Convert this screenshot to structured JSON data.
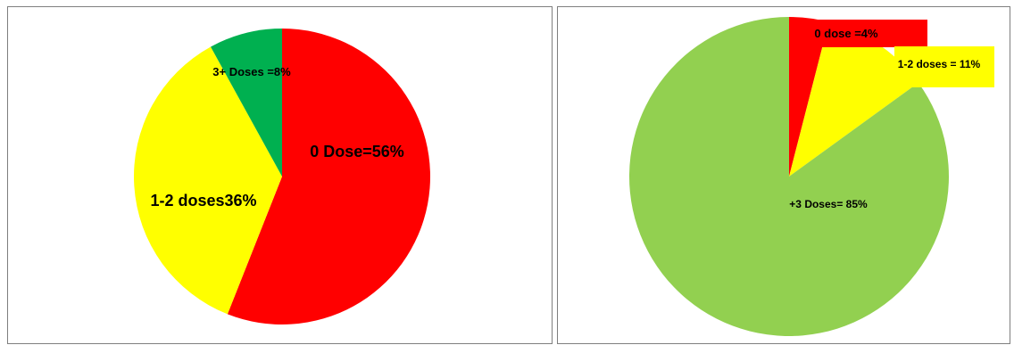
{
  "chart_data": [
    {
      "type": "pie",
      "slices": [
        {
          "label": "0 Dose=56%",
          "value": 56,
          "color": "#ff0000"
        },
        {
          "label": "1-2 doses36%",
          "value": 36,
          "color": "#ffff00"
        },
        {
          "label": "3+ Doses =8%",
          "value": 8,
          "color": "#00b050"
        }
      ]
    },
    {
      "type": "pie",
      "slices": [
        {
          "label": "0 dose =4%",
          "value": 4,
          "color": "#ff0000"
        },
        {
          "label": "1-2 doses = 11%",
          "value": 11,
          "color": "#ffff00"
        },
        {
          "label": "+3 Doses= 85%",
          "value": 85,
          "color": "#92d050"
        }
      ]
    }
  ]
}
